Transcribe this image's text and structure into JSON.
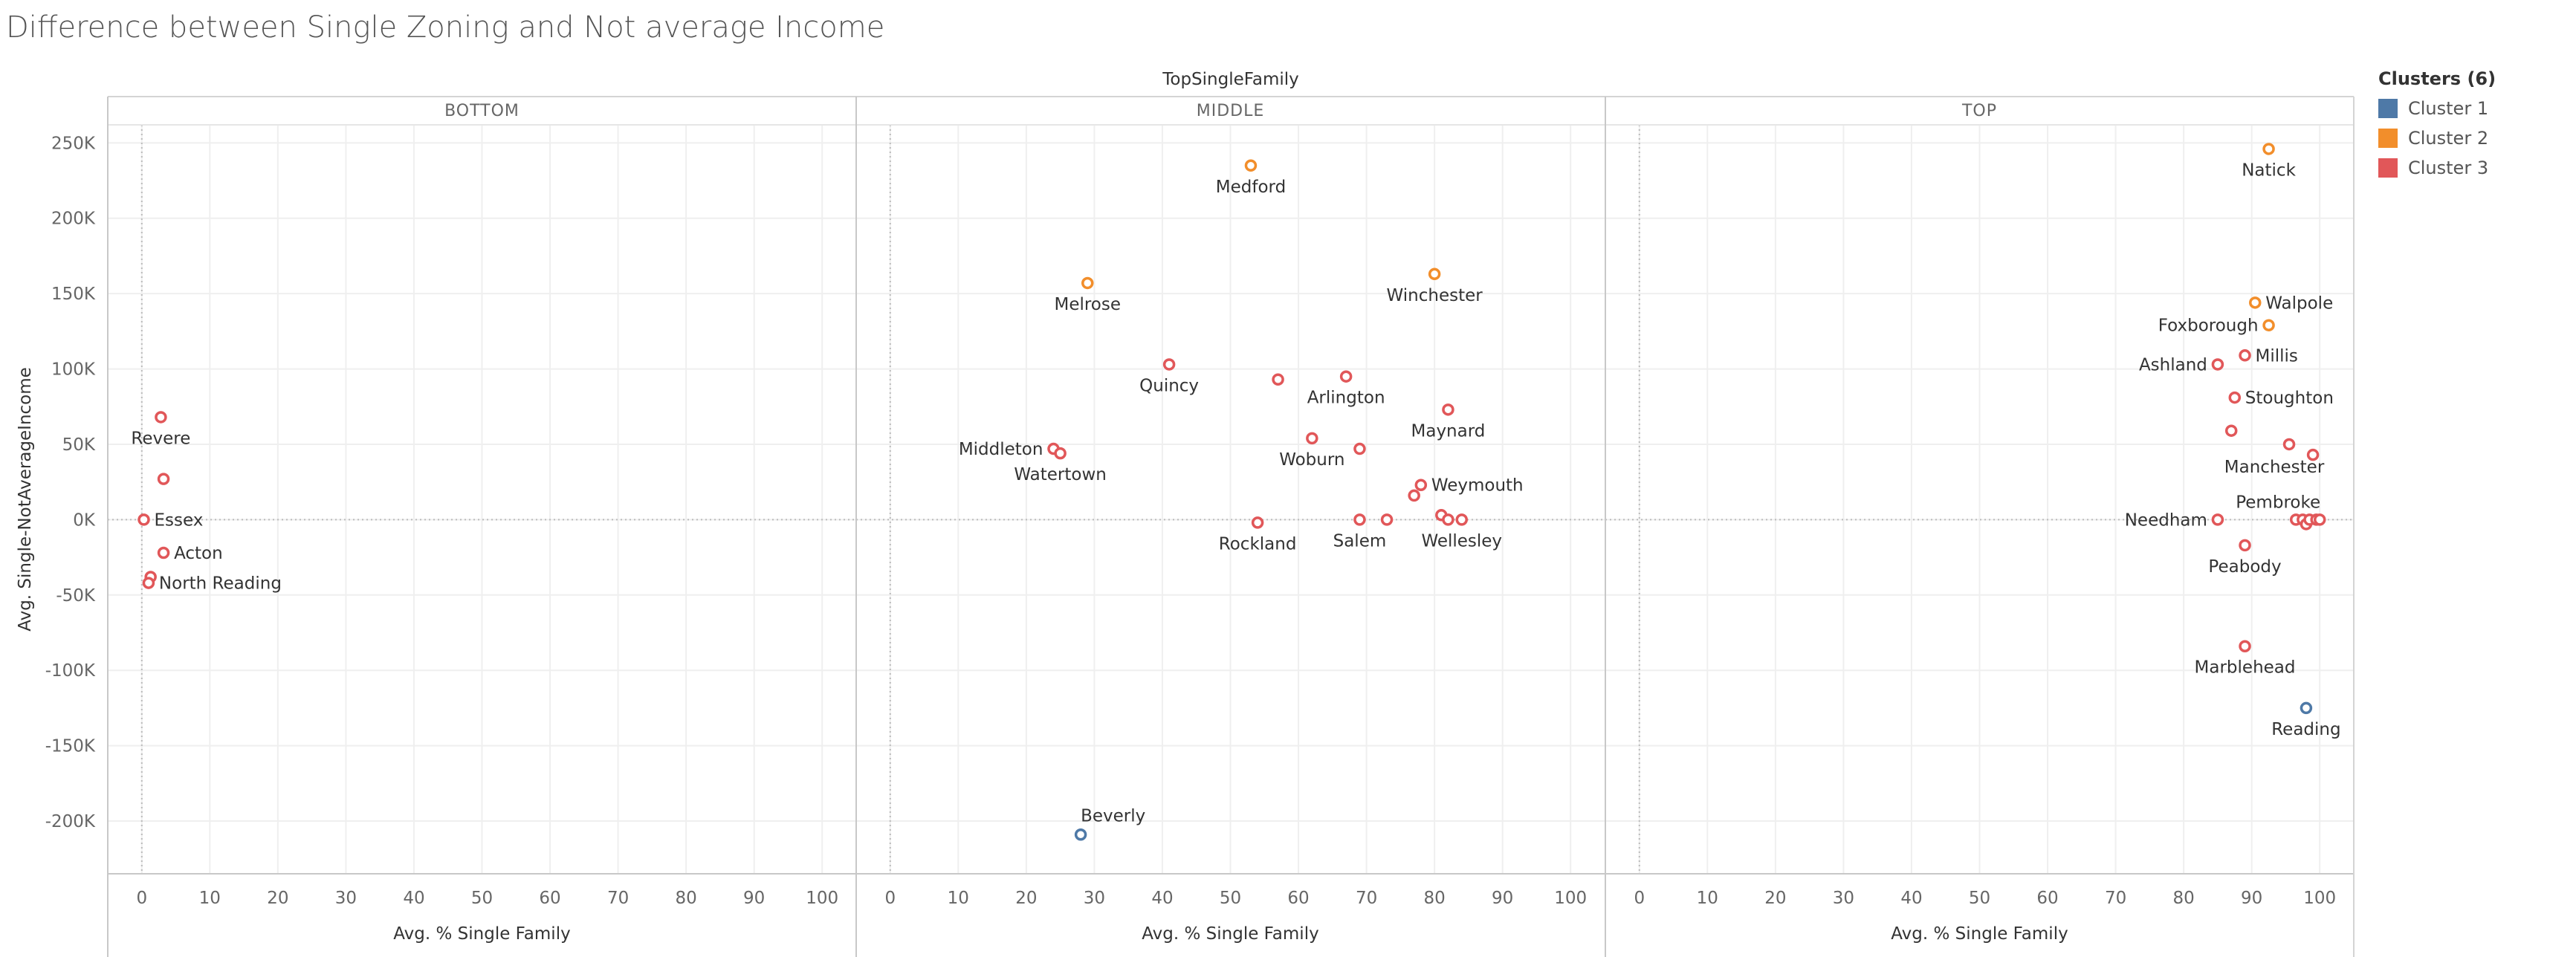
{
  "title": "Difference between Single Zoning and Not average Income",
  "legend": {
    "title": "Clusters (6)",
    "items": [
      {
        "label": "Cluster 1",
        "color": "#4e79a7"
      },
      {
        "label": "Cluster 2",
        "color": "#f28e2b"
      },
      {
        "label": "Cluster 3",
        "color": "#e15759"
      }
    ]
  },
  "chart_data": {
    "type": "scatter",
    "title": "Difference between Single Zoning and Not average Income",
    "column_header": "TopSingleFamily",
    "panels": [
      "BOTTOM",
      "MIDDLE",
      "TOP"
    ],
    "xlabel": "Avg. % Single Family",
    "ylabel": "Avg. Single-NotAverageIncome",
    "xlim": [
      -5,
      105
    ],
    "ylim": [
      -235000,
      262000
    ],
    "x_ticks": [
      0,
      10,
      20,
      30,
      40,
      50,
      60,
      70,
      80,
      90,
      100
    ],
    "y_ticks": [
      250000,
      200000,
      150000,
      100000,
      50000,
      0,
      -50000,
      -100000,
      -150000,
      -200000
    ],
    "y_tick_labels": [
      "250K",
      "200K",
      "150K",
      "100K",
      "50K",
      "0K",
      "-50K",
      "-100K",
      "-150K",
      "-200K"
    ],
    "grid": true,
    "legend_position": "right",
    "colors": {
      "Cluster 1": "#4e79a7",
      "Cluster 2": "#f28e2b",
      "Cluster 3": "#e15759"
    },
    "points": [
      {
        "panel": "BOTTOM",
        "x": 2.8,
        "y": 68000,
        "cluster": "Cluster 3",
        "label": "Revere",
        "label_pos": "below"
      },
      {
        "panel": "BOTTOM",
        "x": 3.2,
        "y": 27000,
        "cluster": "Cluster 3"
      },
      {
        "panel": "BOTTOM",
        "x": 0.3,
        "y": 0,
        "cluster": "Cluster 3",
        "label": "Essex",
        "label_pos": "right"
      },
      {
        "panel": "BOTTOM",
        "x": 3.2,
        "y": -22000,
        "cluster": "Cluster 3",
        "label": "Acton",
        "label_pos": "right"
      },
      {
        "panel": "BOTTOM",
        "x": 1.3,
        "y": -38000,
        "cluster": "Cluster 3"
      },
      {
        "panel": "BOTTOM",
        "x": 1.0,
        "y": -42000,
        "cluster": "Cluster 3",
        "label": "North Reading",
        "label_pos": "right"
      },
      {
        "panel": "MIDDLE",
        "x": 53,
        "y": 235000,
        "cluster": "Cluster 2",
        "label": "Medford",
        "label_pos": "below"
      },
      {
        "panel": "MIDDLE",
        "x": 29,
        "y": 157000,
        "cluster": "Cluster 2",
        "label": "Melrose",
        "label_pos": "below"
      },
      {
        "panel": "MIDDLE",
        "x": 80,
        "y": 163000,
        "cluster": "Cluster 2",
        "label": "Winchester",
        "label_pos": "below"
      },
      {
        "panel": "MIDDLE",
        "x": 41,
        "y": 103000,
        "cluster": "Cluster 3",
        "label": "Quincy",
        "label_pos": "below"
      },
      {
        "panel": "MIDDLE",
        "x": 57,
        "y": 93000,
        "cluster": "Cluster 3"
      },
      {
        "panel": "MIDDLE",
        "x": 67,
        "y": 95000,
        "cluster": "Cluster 3",
        "label": "Arlington",
        "label_pos": "below"
      },
      {
        "panel": "MIDDLE",
        "x": 82,
        "y": 73000,
        "cluster": "Cluster 3",
        "label": "Maynard",
        "label_pos": "below"
      },
      {
        "panel": "MIDDLE",
        "x": 24,
        "y": 47000,
        "cluster": "Cluster 3",
        "label": "Middleton",
        "label_pos": "left"
      },
      {
        "panel": "MIDDLE",
        "x": 25,
        "y": 44000,
        "cluster": "Cluster 3",
        "label": "Watertown",
        "label_pos": "below"
      },
      {
        "panel": "MIDDLE",
        "x": 62,
        "y": 54000,
        "cluster": "Cluster 3",
        "label": "Woburn",
        "label_pos": "below"
      },
      {
        "panel": "MIDDLE",
        "x": 69,
        "y": 47000,
        "cluster": "Cluster 3"
      },
      {
        "panel": "MIDDLE",
        "x": 78,
        "y": 23000,
        "cluster": "Cluster 3",
        "label": "Weymouth",
        "label_pos": "right"
      },
      {
        "panel": "MIDDLE",
        "x": 77,
        "y": 16000,
        "cluster": "Cluster 3"
      },
      {
        "panel": "MIDDLE",
        "x": 81,
        "y": 3000,
        "cluster": "Cluster 3"
      },
      {
        "panel": "MIDDLE",
        "x": 82,
        "y": 0,
        "cluster": "Cluster 3"
      },
      {
        "panel": "MIDDLE",
        "x": 84,
        "y": 0,
        "cluster": "Cluster 3",
        "label": "Wellesley",
        "label_pos": "below"
      },
      {
        "panel": "MIDDLE",
        "x": 69,
        "y": 0,
        "cluster": "Cluster 3",
        "label": "Salem",
        "label_pos": "below"
      },
      {
        "panel": "MIDDLE",
        "x": 73,
        "y": 0,
        "cluster": "Cluster 3"
      },
      {
        "panel": "MIDDLE",
        "x": 54,
        "y": -2000,
        "cluster": "Cluster 3",
        "label": "Rockland",
        "label_pos": "below"
      },
      {
        "panel": "MIDDLE",
        "x": 28,
        "y": -209000,
        "cluster": "Cluster 1",
        "label": "Beverly",
        "label_pos": "above"
      },
      {
        "panel": "TOP",
        "x": 92.5,
        "y": 246000,
        "cluster": "Cluster 2",
        "label": "Natick",
        "label_pos": "below"
      },
      {
        "panel": "TOP",
        "x": 90.5,
        "y": 144000,
        "cluster": "Cluster 2",
        "label": "Walpole",
        "label_pos": "right"
      },
      {
        "panel": "TOP",
        "x": 92.5,
        "y": 129000,
        "cluster": "Cluster 2",
        "label": "Foxborough",
        "label_pos": "left"
      },
      {
        "panel": "TOP",
        "x": 89,
        "y": 109000,
        "cluster": "Cluster 3",
        "label": "Millis",
        "label_pos": "right"
      },
      {
        "panel": "TOP",
        "x": 85,
        "y": 103000,
        "cluster": "Cluster 3",
        "label": "Ashland",
        "label_pos": "left"
      },
      {
        "panel": "TOP",
        "x": 87.5,
        "y": 81000,
        "cluster": "Cluster 3",
        "label": "Stoughton",
        "label_pos": "right"
      },
      {
        "panel": "TOP",
        "x": 87,
        "y": 59000,
        "cluster": "Cluster 3"
      },
      {
        "panel": "TOP",
        "x": 95.5,
        "y": 50000,
        "cluster": "Cluster 3",
        "label": "Manchester",
        "label_pos": "belowleft"
      },
      {
        "panel": "TOP",
        "x": 99,
        "y": 43000,
        "cluster": "Cluster 3"
      },
      {
        "panel": "TOP",
        "x": 85,
        "y": 0,
        "cluster": "Cluster 3",
        "label": "Needham",
        "label_pos": "left"
      },
      {
        "panel": "TOP",
        "x": 96.5,
        "y": 0,
        "cluster": "Cluster 3",
        "label": "Pembroke",
        "label_pos": "aboveleft"
      },
      {
        "panel": "TOP",
        "x": 97.5,
        "y": 0,
        "cluster": "Cluster 3"
      },
      {
        "panel": "TOP",
        "x": 98,
        "y": -3000,
        "cluster": "Cluster 3"
      },
      {
        "panel": "TOP",
        "x": 98.5,
        "y": 0,
        "cluster": "Cluster 3"
      },
      {
        "panel": "TOP",
        "x": 99.5,
        "y": 0,
        "cluster": "Cluster 3"
      },
      {
        "panel": "TOP",
        "x": 100,
        "y": 0,
        "cluster": "Cluster 3"
      },
      {
        "panel": "TOP",
        "x": 89,
        "y": -17000,
        "cluster": "Cluster 3",
        "label": "Peabody",
        "label_pos": "below"
      },
      {
        "panel": "TOP",
        "x": 89,
        "y": -84000,
        "cluster": "Cluster 3",
        "label": "Marblehead",
        "label_pos": "below"
      },
      {
        "panel": "TOP",
        "x": 98,
        "y": -125000,
        "cluster": "Cluster 1",
        "label": "Reading",
        "label_pos": "below"
      }
    ]
  }
}
